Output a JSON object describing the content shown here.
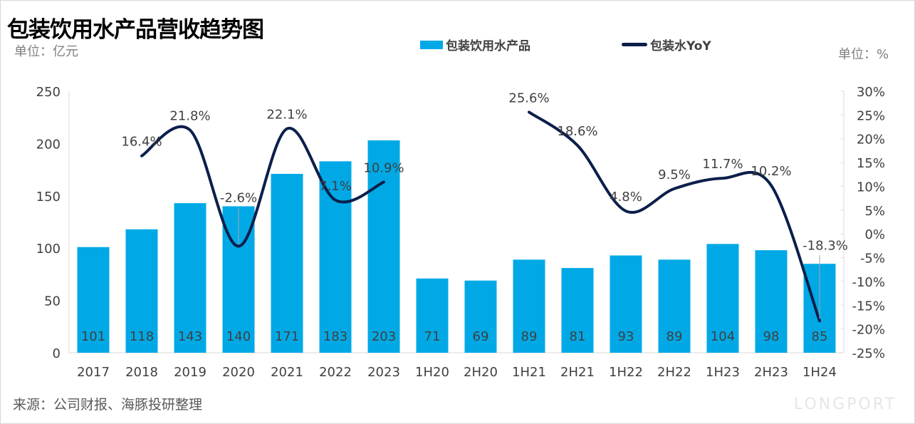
{
  "title": "包装饮用水产品营收趋势图",
  "unit_left": "单位：亿元",
  "unit_right": "单位：%",
  "source": "来源：公司财报、海豚投研整理",
  "brand_watermark": "LONGPORT",
  "colors": {
    "bar": "#00a9e6",
    "line": "#0c1f4b"
  },
  "chart_data": {
    "type": "bar+line",
    "categories": [
      "2017",
      "2018",
      "2019",
      "2020",
      "2021",
      "2022",
      "2023",
      "1H20",
      "2H20",
      "1H21",
      "2H21",
      "1H22",
      "2H22",
      "1H23",
      "2H23",
      "1H24"
    ],
    "legend_position": "top",
    "grid": false,
    "series": [
      {
        "name": "包装饮用水产品",
        "type": "bar",
        "axis": "left",
        "values": [
          101,
          118,
          143,
          140,
          171,
          183,
          203,
          71,
          69,
          89,
          81,
          93,
          89,
          104,
          98,
          85
        ],
        "labels": [
          "101",
          "118",
          "143",
          "140",
          "171",
          "183",
          "203",
          "71",
          "69",
          "89",
          "81",
          "93",
          "89",
          "104",
          "98",
          "85"
        ]
      },
      {
        "name": "包装水YoY",
        "type": "line",
        "axis": "right",
        "values": [
          null,
          16.4,
          21.8,
          -2.6,
          22.1,
          7.1,
          10.9,
          null,
          null,
          25.6,
          18.6,
          4.8,
          9.5,
          11.7,
          10.2,
          -18.3
        ],
        "labels": [
          "",
          "16.4%",
          "21.8%",
          "-2.6%",
          "22.1%",
          "7.1%",
          "10.9%",
          "",
          "",
          "25.6%",
          "18.6%",
          "4.8%",
          "9.5%",
          "11.7%",
          "10.2%",
          "-18.3%"
        ]
      }
    ],
    "y_left": {
      "range": [
        0,
        250
      ],
      "ticks": [
        "0",
        "50",
        "100",
        "150",
        "200",
        "250"
      ]
    },
    "y_right": {
      "range": [
        -25,
        30
      ],
      "ticks": [
        "30%",
        "25%",
        "20%",
        "15%",
        "10%",
        "5%",
        "0%",
        "-5%",
        "-10%",
        "-15%",
        "-20%",
        "-25%"
      ]
    }
  }
}
